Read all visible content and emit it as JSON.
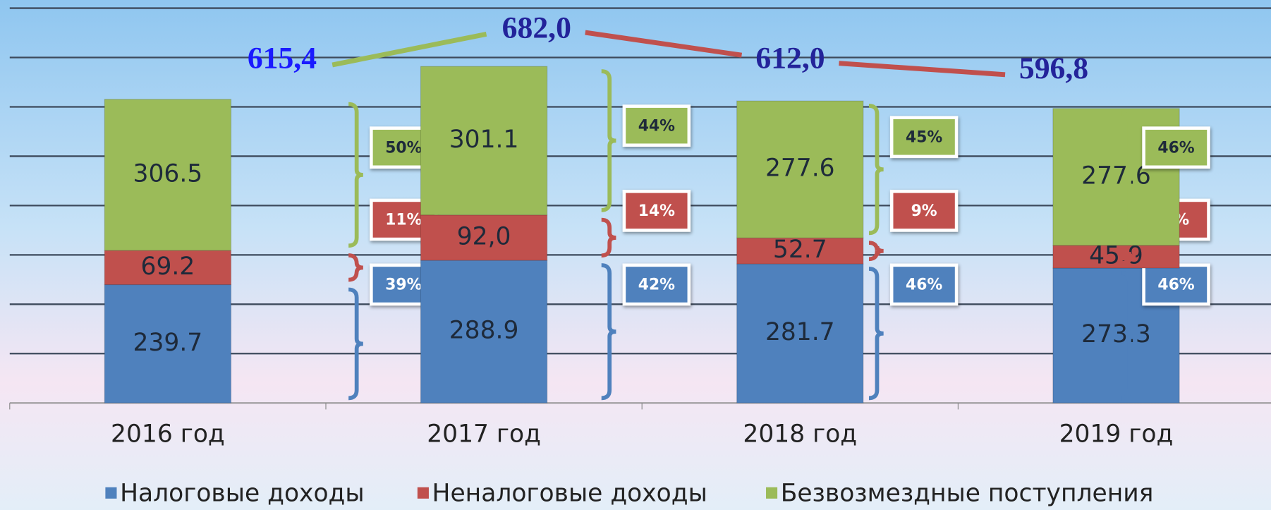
{
  "chart_data": {
    "type": "bar",
    "stacked": true,
    "categories": [
      "2016 год",
      "2017 год",
      "2018 год",
      "2019 год"
    ],
    "series": [
      {
        "name": "Налоговые доходы",
        "color": "#4f81bd",
        "values": [
          239.7,
          288.9,
          281.7,
          273.3
        ],
        "shares": [
          39,
          42,
          46,
          46
        ],
        "share_labels": [
          "39%",
          "42%",
          "46%",
          "46%"
        ]
      },
      {
        "name": "Неналоговые доходы",
        "color": "#c0504d",
        "values": [
          69.2,
          92.0,
          52.7,
          45.9
        ],
        "value_labels": [
          "69.2",
          "92,0",
          "52.7",
          "45.9"
        ],
        "shares": [
          11,
          14,
          9,
          8
        ],
        "share_labels": [
          "11%",
          "14%",
          "9%",
          "8%"
        ]
      },
      {
        "name": "Безвозмездные поступления",
        "color": "#9bbb59",
        "values": [
          306.5,
          301.1,
          277.6,
          277.6
        ],
        "shares": [
          50,
          44,
          45,
          46
        ],
        "share_labels": [
          "50%",
          "44%",
          "45%",
          "46%"
        ]
      }
    ],
    "totals": [
      615.4,
      682.0,
      612.0,
      596.8
    ],
    "total_labels": [
      "615,4",
      "682,0",
      "612,0",
      "596,8"
    ],
    "ylim": [
      0,
      800
    ],
    "yticks": [
      0,
      100,
      200,
      300,
      400,
      500,
      600,
      700,
      800
    ],
    "grid": true,
    "legend": "bottom"
  }
}
